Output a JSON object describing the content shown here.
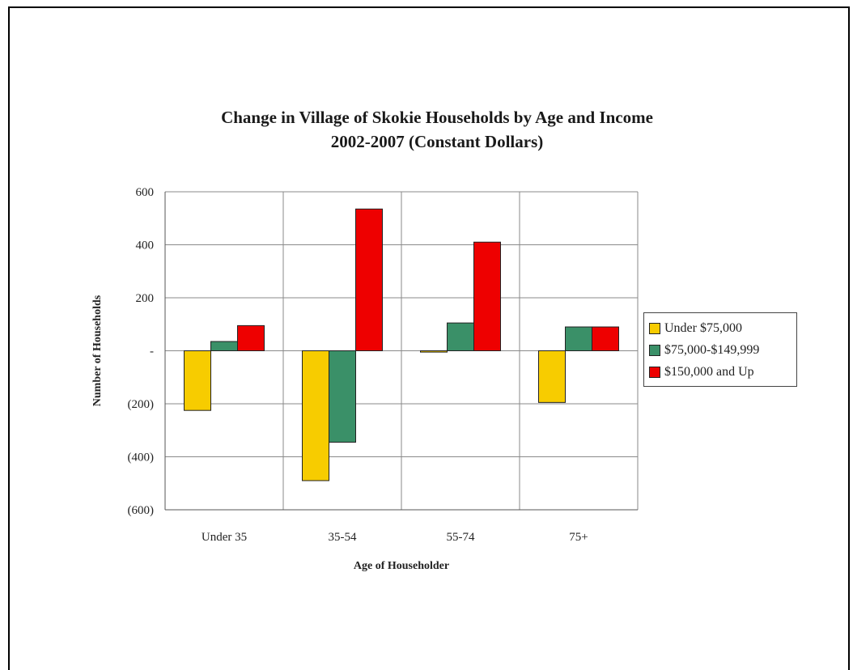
{
  "chart_data": {
    "type": "bar",
    "title": "Change in Village of Skokie Households by Age and Income",
    "subtitle": "2002-2007 (Constant Dollars)",
    "xlabel": "Age of Householder",
    "ylabel": "Number of Households",
    "categories": [
      "Under 35",
      "35-54",
      "55-74",
      "75+"
    ],
    "series": [
      {
        "name": "Under $75,000",
        "values": [
          -225,
          -490,
          -5,
          -195
        ],
        "color": "#f7cc00"
      },
      {
        "name": "$75,000-$149,999",
        "values": [
          35,
          -345,
          105,
          90
        ],
        "color": "#3a9068"
      },
      {
        "name": "$150,000 and Up",
        "values": [
          95,
          535,
          410,
          90
        ],
        "color": "#ee0000"
      }
    ],
    "ylim": [
      -600,
      600
    ],
    "yticks": [
      {
        "value": 600,
        "label": "600"
      },
      {
        "value": 400,
        "label": "400"
      },
      {
        "value": 200,
        "label": "200"
      },
      {
        "value": 0,
        "label": "-"
      },
      {
        "value": -200,
        "label": "(200)"
      },
      {
        "value": -400,
        "label": "(400)"
      },
      {
        "value": -600,
        "label": "(600)"
      }
    ],
    "grid": true,
    "legend_position": "right"
  }
}
